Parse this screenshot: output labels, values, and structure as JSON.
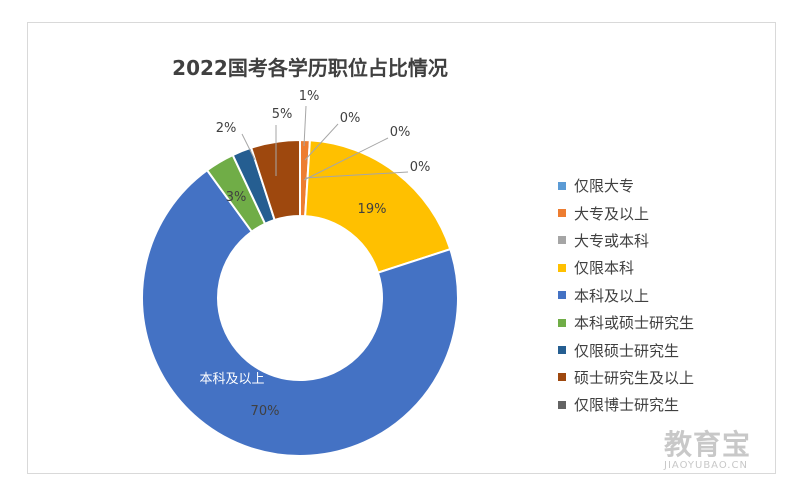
{
  "chart_data": {
    "type": "donut",
    "title": "2022国考各学历职位占比情况",
    "slices": [
      {
        "name": "仅限大专",
        "value": 0,
        "label": "",
        "color": "#5B9BD5"
      },
      {
        "name": "大专及以上",
        "value": 1,
        "label": "1%",
        "color": "#ED7D31"
      },
      {
        "name": "大专或本科",
        "value": 0,
        "label": "0%",
        "color": "#A5A5A5"
      },
      {
        "name": "仅限本科",
        "value": 19,
        "label": "19%",
        "color": "#FFC000"
      },
      {
        "name": "本科及以上",
        "value": 70,
        "label": "70%",
        "color": "#4472C4"
      },
      {
        "name": "本科或硕士研究生",
        "value": 3,
        "label": "3%",
        "color": "#70AD47"
      },
      {
        "name": "仅限硕士研究生",
        "value": 2,
        "label": "2%",
        "color": "#255E91"
      },
      {
        "name": "硕士研究生及以上",
        "value": 5,
        "label": "5%",
        "color": "#9E480E"
      },
      {
        "name": "仅限博士研究生",
        "value": 0,
        "label": "0%",
        "color": "#636363"
      }
    ],
    "legend_position": "right",
    "tooltip_label": "本科及以上"
  },
  "watermark": {
    "text": "教育宝",
    "subtext": "JIAOYUBAO.CN"
  }
}
